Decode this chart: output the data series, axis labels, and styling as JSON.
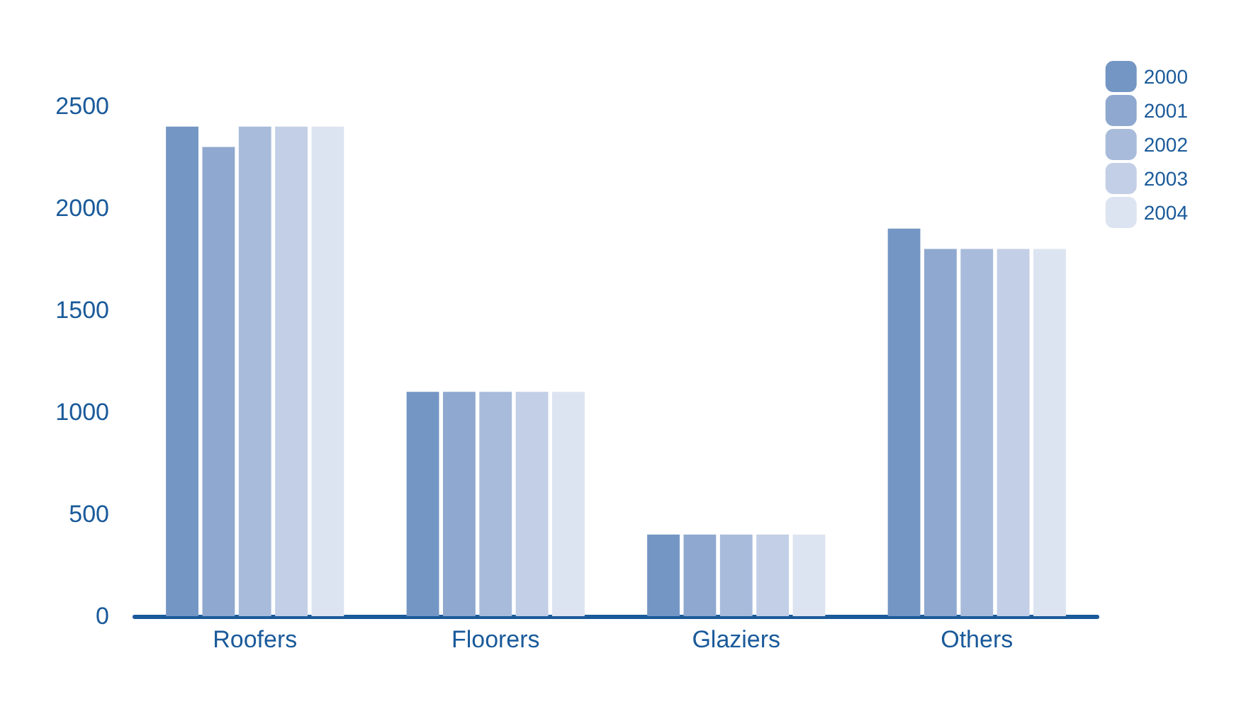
{
  "chart_data": {
    "type": "bar",
    "categories": [
      "Roofers",
      "Floorers",
      "Glaziers",
      "Others"
    ],
    "series": [
      {
        "name": "2000",
        "color": "#7496c4",
        "values": [
          2400,
          1100,
          400,
          1900
        ]
      },
      {
        "name": "2001",
        "color": "#8fa8cf",
        "values": [
          2300,
          1100,
          400,
          1800
        ]
      },
      {
        "name": "2002",
        "color": "#a8bbdb",
        "values": [
          2400,
          1100,
          400,
          1800
        ]
      },
      {
        "name": "2003",
        "color": "#c3cfe6",
        "values": [
          2400,
          1100,
          400,
          1800
        ]
      },
      {
        "name": "2004",
        "color": "#dde4f1",
        "values": [
          2400,
          1100,
          400,
          1800
        ]
      }
    ],
    "ylim": [
      0,
      2500
    ],
    "yticks": [
      0,
      500,
      1000,
      1500,
      2000,
      2500
    ],
    "grid": false,
    "legend": "top right"
  }
}
